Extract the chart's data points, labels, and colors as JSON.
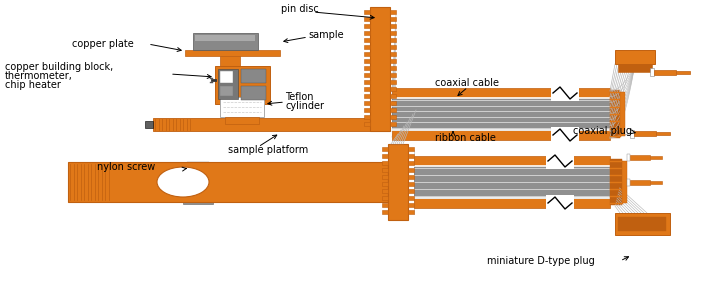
{
  "orange": "#E07818",
  "orange_dark": "#C06010",
  "orange_light": "#F09840",
  "gray": "#909090",
  "gray_dark": "#606060",
  "gray_light": "#B8B8B8",
  "white": "#FFFFFF",
  "black": "#000000",
  "bg": "#FFFFFF",
  "font_size": 7.0,
  "fig_width": 7.13,
  "fig_height": 2.81,
  "labels": {
    "pin_disc": "pin disc",
    "sample": "sample",
    "copper_plate": "copper plate",
    "copper_block1": "copper building block,",
    "copper_block2": "thermometer,",
    "copper_block3": "chip heater",
    "teflon1": "Teflon",
    "teflon2": "cylinder",
    "nylon_screw": "nylon screw",
    "sample_platform": "sample platform",
    "coaxial_cable": "coaxial cable",
    "ribbon_cable": "ribbon cable",
    "coaxial_plug": "coaxial plug",
    "miniature_plug": "miniature D-type plug"
  }
}
